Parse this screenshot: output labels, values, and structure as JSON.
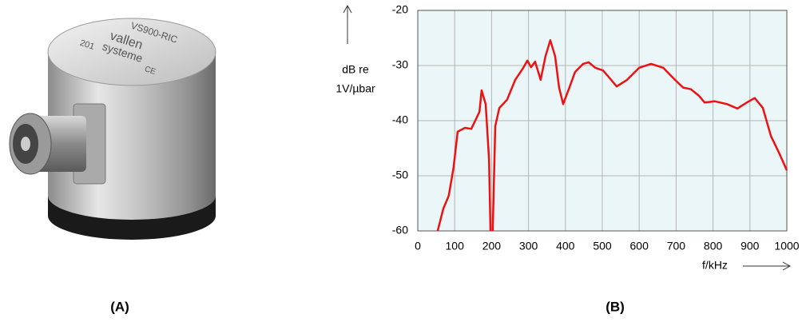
{
  "panel_labels": [
    "(A)",
    "(B)"
  ],
  "photo_texts": [
    "VS900-RIC",
    "vallen",
    "systeme",
    "201",
    "CE"
  ],
  "chart_data": {
    "type": "line",
    "y_label": [
      "dB re",
      "1V/µbar"
    ],
    "x_label": "f/kHz",
    "x": [
      54,
      69,
      84,
      97,
      108,
      128,
      145,
      167,
      173,
      184,
      193,
      197,
      null,
      203,
      210,
      221,
      242,
      264,
      286,
      297,
      307,
      318,
      333,
      346,
      359,
      372,
      383,
      394,
      409,
      426,
      448,
      463,
      481,
      502,
      524,
      539,
      567,
      600,
      632,
      665,
      697,
      719,
      740,
      762,
      777,
      805,
      838,
      866,
      892,
      913,
      935,
      957,
      978,
      1000
    ],
    "values": [
      -60,
      -56,
      -53.6,
      -48.5,
      -42,
      -41.3,
      -41.5,
      -38.4,
      -34.5,
      -37,
      -47,
      -60,
      null,
      -60,
      -41,
      -37.7,
      -36.2,
      -32.6,
      -30.4,
      -29.1,
      -30.3,
      -29.3,
      -32.6,
      -28.3,
      -25.4,
      -28.3,
      -34,
      -37,
      -34.3,
      -31.2,
      -29.7,
      -29.4,
      -30.4,
      -30.9,
      -32.6,
      -33.8,
      -32.6,
      -30.4,
      -29.7,
      -30.4,
      -32.6,
      -34,
      -34.3,
      -35.5,
      -36.7,
      -36.5,
      -37,
      -37.8,
      -36.7,
      -35.9,
      -37.7,
      -42.8,
      -45.7,
      -49
    ],
    "color": "#ee1111",
    "xlim": [
      0,
      1000
    ],
    "xticks": [
      0,
      100,
      200,
      300,
      400,
      500,
      600,
      700,
      800,
      900,
      1000
    ],
    "ylim": [
      -60,
      -20
    ],
    "yticks": [
      -60,
      -50,
      -40,
      -30,
      -20
    ],
    "grid": true
  }
}
